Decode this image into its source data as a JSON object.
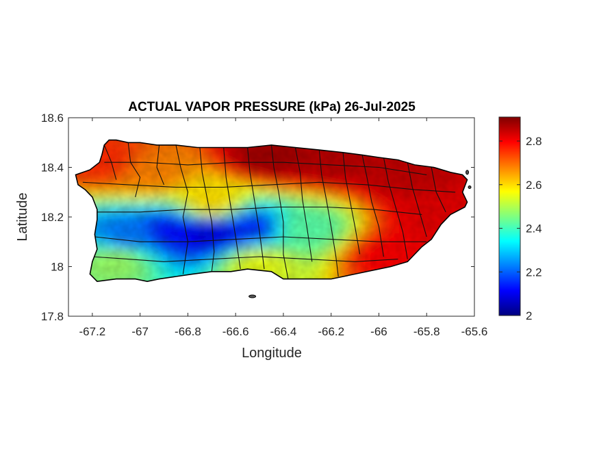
{
  "chart_data": {
    "type": "heatmap",
    "title": "ACTUAL VAPOR PRESSURE (kPa) 26-Jul-2025",
    "xlabel": "Longitude",
    "ylabel": "Latitude",
    "xlim": [
      -67.3,
      -65.6
    ],
    "ylim": [
      17.8,
      18.6
    ],
    "xticks": [
      -67.2,
      -67,
      -66.8,
      -66.6,
      -66.4,
      -66.2,
      -66,
      -65.8,
      -65.6
    ],
    "yticks": [
      18.6,
      18.4,
      18.2,
      18,
      17.8
    ],
    "colorbar": {
      "label": "",
      "colormap": "jet",
      "range": [
        2.0,
        2.91
      ],
      "ticks": [
        2,
        2.2,
        2.4,
        2.6,
        2.8
      ]
    },
    "region": "Puerto Rico (municipality boundaries)",
    "field_samples": [
      {
        "lon": -66.45,
        "lat": 18.45,
        "value": 2.88
      },
      {
        "lon": -66.2,
        "lat": 18.43,
        "value": 2.86
      },
      {
        "lon": -65.9,
        "lat": 18.38,
        "value": 2.85
      },
      {
        "lon": -67.15,
        "lat": 18.43,
        "value": 2.76
      },
      {
        "lon": -66.95,
        "lat": 18.38,
        "value": 2.68
      },
      {
        "lon": -66.7,
        "lat": 18.26,
        "value": 2.6
      },
      {
        "lon": -66.85,
        "lat": 18.15,
        "value": 2.12
      },
      {
        "lon": -66.7,
        "lat": 18.14,
        "value": 2.08
      },
      {
        "lon": -66.55,
        "lat": 18.16,
        "value": 2.15
      },
      {
        "lon": -67.05,
        "lat": 18.13,
        "value": 2.22
      },
      {
        "lon": -66.3,
        "lat": 18.16,
        "value": 2.42
      },
      {
        "lon": -67.1,
        "lat": 18.03,
        "value": 2.48
      },
      {
        "lon": -66.5,
        "lat": 18.02,
        "value": 2.55
      },
      {
        "lon": -65.95,
        "lat": 18.05,
        "value": 2.8
      },
      {
        "lon": -65.75,
        "lat": 18.2,
        "value": 2.82
      }
    ]
  },
  "colors": {
    "accent": "#000000",
    "land_min": "#00007f",
    "land_max": "#7f0000"
  }
}
